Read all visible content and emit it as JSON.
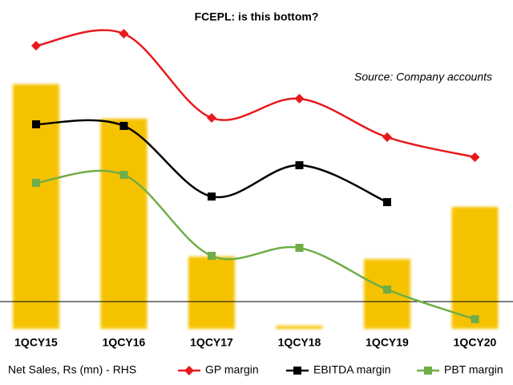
{
  "chart_data": {
    "type": "combo",
    "title": "FCEPL: is this bottom?",
    "annotation": "Source: Company accounts",
    "categories": [
      "1QCY15",
      "1QCY16",
      "1QCY17",
      "1QCY18",
      "1QCY19",
      "1QCY20"
    ],
    "ylim": [
      -3.4,
      35.6
    ],
    "y2lim": [
      0,
      100
    ],
    "series": [
      {
        "name": "Net Sales, Rs (mn) - RHS",
        "type": "bar",
        "axis": "y2",
        "color": "#f5c200",
        "values": [
          78.2,
          67.2,
          23.1,
          1.0,
          22.3,
          39.0
        ]
      },
      {
        "name": "GP margin",
        "type": "line",
        "marker": "diamond",
        "color": "#e8191c",
        "values": [
          31.9,
          33.4,
          22.9,
          25.3,
          20.5,
          18.0
        ]
      },
      {
        "name": "EBITDA margin",
        "type": "line",
        "marker": "square",
        "color": "#000000",
        "values": [
          22.1,
          21.9,
          13.1,
          17.0,
          12.4,
          null
        ]
      },
      {
        "name": "PBT margin",
        "type": "line",
        "marker": "square",
        "color": "#70ad47",
        "values": [
          14.8,
          15.8,
          5.7,
          6.7,
          1.5,
          -2.2
        ]
      }
    ]
  }
}
